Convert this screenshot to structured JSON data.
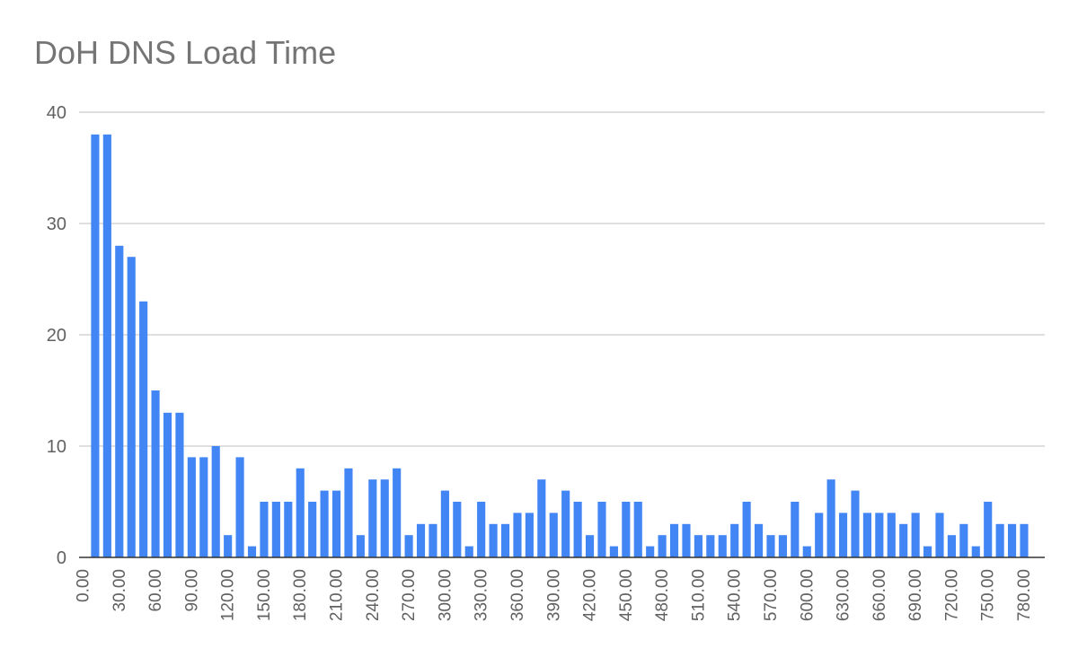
{
  "chart_data": {
    "type": "bar",
    "title": "DoH DNS Load Time",
    "xlabel": "",
    "ylabel": "",
    "ylim": [
      0,
      40
    ],
    "yticks": [
      "0",
      "10",
      "20",
      "30",
      "40"
    ],
    "grid": true,
    "legend": "none",
    "bar_color": "#4285f4",
    "categories": [
      "0.00",
      "10.00",
      "20.00",
      "30.00",
      "40.00",
      "50.00",
      "60.00",
      "70.00",
      "80.00",
      "90.00",
      "100.00",
      "110.00",
      "120.00",
      "130.00",
      "140.00",
      "150.00",
      "160.00",
      "170.00",
      "180.00",
      "190.00",
      "200.00",
      "210.00",
      "220.00",
      "230.00",
      "240.00",
      "250.00",
      "260.00",
      "270.00",
      "280.00",
      "290.00",
      "300.00",
      "310.00",
      "320.00",
      "330.00",
      "340.00",
      "350.00",
      "360.00",
      "370.00",
      "380.00",
      "390.00",
      "400.00",
      "410.00",
      "420.00",
      "430.00",
      "440.00",
      "450.00",
      "460.00",
      "470.00",
      "480.00",
      "490.00",
      "500.00",
      "510.00",
      "520.00",
      "530.00",
      "540.00",
      "550.00",
      "560.00",
      "570.00",
      "580.00",
      "590.00",
      "600.00",
      "610.00",
      "620.00",
      "630.00",
      "640.00",
      "650.00",
      "660.00",
      "670.00",
      "680.00",
      "690.00",
      "700.00",
      "710.00",
      "720.00",
      "730.00",
      "740.00",
      "750.00",
      "760.00",
      "770.00",
      "780.00"
    ],
    "tick_labels": [
      "0.00",
      "30.00",
      "60.00",
      "90.00",
      "120.00",
      "150.00",
      "180.00",
      "210.00",
      "240.00",
      "270.00",
      "300.00",
      "330.00",
      "360.00",
      "390.00",
      "420.00",
      "450.00",
      "480.00",
      "510.00",
      "540.00",
      "570.00",
      "600.00",
      "630.00",
      "660.00",
      "690.00",
      "720.00",
      "750.00",
      "780.00"
    ],
    "values": [
      0,
      38,
      38,
      28,
      27,
      23,
      15,
      13,
      13,
      9,
      9,
      10,
      2,
      9,
      1,
      5,
      5,
      5,
      8,
      5,
      6,
      6,
      8,
      2,
      7,
      7,
      8,
      2,
      3,
      3,
      6,
      5,
      1,
      5,
      3,
      3,
      4,
      4,
      7,
      4,
      6,
      5,
      2,
      5,
      1,
      5,
      5,
      1,
      2,
      3,
      3,
      2,
      2,
      2,
      3,
      5,
      3,
      2,
      2,
      5,
      1,
      4,
      7,
      4,
      6,
      4,
      4,
      4,
      3,
      4,
      1,
      4,
      2,
      3,
      1,
      5,
      3,
      3,
      3
    ]
  }
}
